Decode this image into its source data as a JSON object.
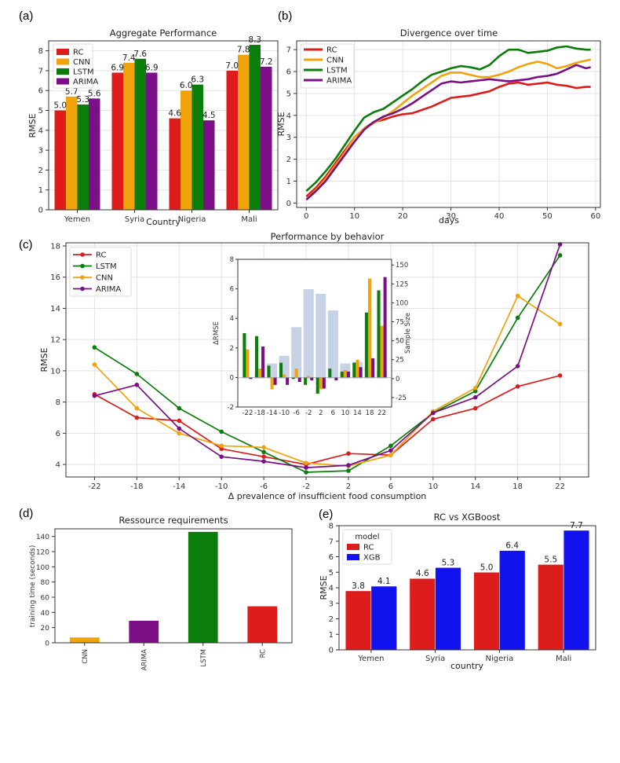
{
  "colors": {
    "RC": "#dd1c1c",
    "CNN": "#f0a30a",
    "LSTM": "#0a7d0a",
    "ARIMA": "#7b0f86",
    "XGB": "#1212ee",
    "sample": "#c7d3e4"
  },
  "chart_data": [
    {
      "id": "a",
      "type": "bar",
      "panel_label": "(a)",
      "title": "Aggregate Performance",
      "xlabel": "Country",
      "ylabel": "RMSE",
      "ylim": [
        0,
        8.5
      ],
      "yticks": [
        "0",
        "1",
        "2",
        "3",
        "4",
        "5",
        "6",
        "7",
        "8"
      ],
      "categories": [
        "Yemen",
        "Syria",
        "Nigeria",
        "Mali"
      ],
      "series": [
        {
          "name": "RC",
          "color": "RC",
          "values": [
            5.0,
            6.9,
            4.6,
            7.0
          ],
          "labels": [
            "5.0",
            "6.9",
            "4.6",
            "7.0"
          ]
        },
        {
          "name": "CNN",
          "color": "CNN",
          "values": [
            5.7,
            7.4,
            6.0,
            7.8
          ],
          "labels": [
            "5.7",
            "7.4",
            "6.0",
            "7.8"
          ]
        },
        {
          "name": "LSTM",
          "color": "LSTM",
          "values": [
            5.3,
            7.6,
            6.3,
            8.3
          ],
          "labels": [
            "5.3",
            "7.6",
            "6.3",
            "8.3"
          ]
        },
        {
          "name": "ARIMA",
          "color": "ARIMA",
          "values": [
            5.6,
            6.9,
            4.5,
            7.2
          ],
          "labels": [
            "5.6",
            "6.9",
            "4.5",
            "7.2"
          ]
        }
      ],
      "legend": "top-left"
    },
    {
      "id": "b",
      "type": "line",
      "panel_label": "(b)",
      "title": "Divergence over time",
      "xlabel": "days",
      "ylabel": "RMSE",
      "xlim": [
        -2,
        61
      ],
      "ylim": [
        -0.2,
        7.4
      ],
      "xticks": [
        "0",
        "10",
        "20",
        "30",
        "40",
        "50",
        "60"
      ],
      "yticks": [
        "0",
        "1",
        "2",
        "3",
        "4",
        "5",
        "6",
        "7"
      ],
      "x": [
        0,
        2,
        4,
        6,
        8,
        10,
        12,
        14,
        16,
        18,
        20,
        22,
        24,
        26,
        28,
        30,
        32,
        34,
        36,
        38,
        40,
        42,
        44,
        46,
        48,
        50,
        52,
        54,
        56,
        58,
        59
      ],
      "series": [
        {
          "name": "RC",
          "color": "RC",
          "values": [
            0.3,
            0.7,
            1.2,
            1.8,
            2.4,
            3.0,
            3.4,
            3.7,
            3.8,
            3.95,
            4.05,
            4.1,
            4.25,
            4.4,
            4.6,
            4.8,
            4.85,
            4.9,
            5.0,
            5.1,
            5.3,
            5.45,
            5.5,
            5.4,
            5.45,
            5.5,
            5.4,
            5.35,
            5.25,
            5.3,
            5.3
          ]
        },
        {
          "name": "CNN",
          "color": "CNN",
          "values": [
            0.15,
            0.6,
            1.1,
            1.7,
            2.3,
            3.0,
            3.4,
            3.65,
            3.9,
            4.2,
            4.55,
            4.9,
            5.2,
            5.5,
            5.8,
            5.95,
            5.95,
            5.85,
            5.75,
            5.75,
            5.85,
            6.0,
            6.2,
            6.35,
            6.45,
            6.35,
            6.15,
            6.25,
            6.4,
            6.5,
            6.55
          ]
        },
        {
          "name": "LSTM",
          "color": "LSTM",
          "values": [
            0.55,
            0.95,
            1.45,
            2.0,
            2.65,
            3.3,
            3.9,
            4.15,
            4.3,
            4.6,
            4.9,
            5.2,
            5.55,
            5.85,
            6.0,
            6.15,
            6.25,
            6.2,
            6.1,
            6.3,
            6.7,
            7.0,
            7.0,
            6.85,
            6.9,
            6.95,
            7.1,
            7.15,
            7.05,
            7.0,
            7.0
          ]
        },
        {
          "name": "ARIMA",
          "color": "ARIMA",
          "values": [
            0.15,
            0.55,
            1.0,
            1.6,
            2.2,
            2.8,
            3.35,
            3.7,
            3.95,
            4.1,
            4.3,
            4.55,
            4.85,
            5.15,
            5.45,
            5.55,
            5.5,
            5.55,
            5.6,
            5.65,
            5.6,
            5.55,
            5.6,
            5.65,
            5.75,
            5.8,
            5.9,
            6.1,
            6.3,
            6.15,
            6.2
          ]
        }
      ],
      "legend": "top-left"
    },
    {
      "id": "c",
      "type": "line",
      "panel_label": "(c)",
      "title": "Performance by behavior",
      "xlabel": "Δ prevalence of insufficient food consumption",
      "ylabel": "RMSE",
      "ylim": [
        3.2,
        18.2
      ],
      "x": [
        -22,
        -18,
        -14,
        -10,
        -6,
        -2,
        2,
        6,
        10,
        14,
        18,
        22
      ],
      "xticks": [
        "-22",
        "-18",
        "-14",
        "-10",
        "-6",
        "-2",
        "2",
        "6",
        "10",
        "14",
        "18",
        "22"
      ],
      "yticks": [
        "4",
        "6",
        "8",
        "10",
        "12",
        "14",
        "16",
        "18"
      ],
      "series": [
        {
          "name": "RC",
          "color": "RC",
          "values": [
            8.5,
            7.0,
            6.8,
            5.0,
            4.5,
            4.0,
            4.7,
            4.6,
            6.9,
            7.6,
            9.0,
            9.7
          ]
        },
        {
          "name": "LSTM",
          "color": "LSTM",
          "values": [
            11.5,
            9.8,
            7.6,
            6.1,
            4.8,
            3.5,
            3.6,
            5.2,
            7.3,
            8.7,
            13.4,
            17.4
          ]
        },
        {
          "name": "CNN",
          "color": "CNN",
          "values": [
            10.4,
            7.6,
            6.0,
            5.2,
            5.1,
            4.1,
            3.9,
            4.6,
            7.4,
            8.9,
            14.8,
            13.0
          ]
        },
        {
          "name": "ARIMA",
          "color": "ARIMA",
          "values": [
            8.4,
            9.1,
            6.3,
            4.5,
            4.2,
            3.8,
            3.95,
            4.9,
            7.3,
            8.3,
            10.3,
            18.1
          ]
        }
      ],
      "legend": "top-left",
      "inset": {
        "type": "bar",
        "ylabel_left": "ΔRMSE",
        "ylabel_right": "Sample Size",
        "ylim_left": [
          -2,
          8
        ],
        "ylim_right": [
          -37.5,
          157.5
        ],
        "yticks_left": [
          "-2",
          "0",
          "2",
          "4",
          "6",
          "8"
        ],
        "yticks_right": [
          "-25",
          "0",
          "25",
          "50",
          "75",
          "100",
          "125",
          "150"
        ],
        "categories": [
          "-22",
          "-18",
          "-14",
          "-10",
          "-6",
          "-2",
          "2",
          "6",
          "10",
          "14",
          "18",
          "22"
        ],
        "sample_size": [
          2,
          6,
          20,
          30,
          68,
          118,
          112,
          90,
          20,
          22,
          14,
          10
        ],
        "series": [
          {
            "name": "LSTM",
            "color": "LSTM",
            "values": [
              3.0,
              2.8,
              0.8,
              1.0,
              -0.1,
              -0.5,
              -1.1,
              0.6,
              0.4,
              1.0,
              4.4,
              5.9
            ]
          },
          {
            "name": "CNN",
            "color": "CNN",
            "values": [
              1.9,
              0.6,
              -0.8,
              0.2,
              0.6,
              0.1,
              -0.8,
              0.0,
              0.5,
              1.2,
              6.7,
              3.5
            ]
          },
          {
            "name": "ARIMA",
            "color": "ARIMA",
            "values": [
              -0.1,
              2.1,
              -0.5,
              -0.5,
              -0.3,
              -0.2,
              -0.75,
              -0.2,
              0.4,
              0.7,
              1.3,
              6.8
            ]
          }
        ]
      }
    },
    {
      "id": "d",
      "type": "bar",
      "panel_label": "(d)",
      "title": "Ressource requirements",
      "xlabel": "",
      "ylabel": "training time (seconds)",
      "ylim": [
        0,
        150
      ],
      "yticks": [
        "0",
        "20",
        "40",
        "60",
        "80",
        "100",
        "120",
        "140"
      ],
      "categories": [
        "CNN",
        "ARIMA",
        "LSTM",
        "RC"
      ],
      "values": [
        7,
        29,
        146,
        48
      ],
      "bar_colors": [
        "CNN",
        "ARIMA",
        "LSTM",
        "RC"
      ]
    },
    {
      "id": "e",
      "type": "bar",
      "panel_label": "(e)",
      "title": "RC vs XGBoost",
      "xlabel": "country",
      "ylabel": "RMSE",
      "ylim": [
        0,
        8
      ],
      "yticks": [
        "0",
        "1",
        "2",
        "3",
        "4",
        "5",
        "6",
        "7",
        "8"
      ],
      "categories": [
        "Yemen",
        "Syria",
        "Nigeria",
        "Mali"
      ],
      "legend_title": "model",
      "series": [
        {
          "name": "RC",
          "color": "RC",
          "values": [
            3.8,
            4.6,
            5.0,
            5.5
          ],
          "labels": [
            "3.8",
            "4.6",
            "5.0",
            "5.5"
          ]
        },
        {
          "name": "XGB",
          "color": "XGB",
          "values": [
            4.1,
            5.3,
            6.4,
            7.7
          ],
          "labels": [
            "4.1",
            "5.3",
            "6.4",
            "7.7"
          ]
        }
      ],
      "legend": "top-left"
    }
  ]
}
